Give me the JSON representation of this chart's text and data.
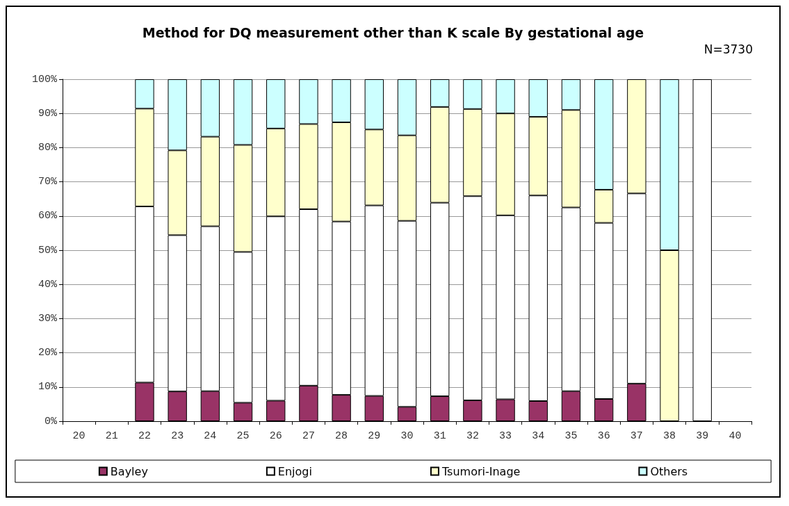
{
  "chart_data": {
    "type": "bar",
    "stacked": true,
    "title": "Method for DQ measurement other than K scale By gestational age",
    "annotations": [
      "N=3730"
    ],
    "categories": [
      "20",
      "21",
      "22",
      "23",
      "24",
      "25",
      "26",
      "27",
      "28",
      "29",
      "30",
      "31",
      "32",
      "33",
      "34",
      "35",
      "36",
      "37",
      "38",
      "39",
      "40"
    ],
    "series": [
      {
        "name": "Bayley",
        "color": "#993366",
        "values": [
          null,
          null,
          11.3,
          8.7,
          8.8,
          5.4,
          6.0,
          10.4,
          7.7,
          7.4,
          4.2,
          7.3,
          6.1,
          6.4,
          5.9,
          8.8,
          6.5,
          11.0,
          0,
          0,
          null
        ]
      },
      {
        "name": "Enjogi",
        "color": "#ffffff",
        "values": [
          null,
          null,
          51.5,
          45.7,
          48.2,
          44.1,
          53.9,
          51.6,
          50.7,
          55.7,
          54.4,
          56.6,
          59.7,
          53.8,
          60.1,
          53.7,
          51.5,
          55.6,
          0,
          100,
          null
        ]
      },
      {
        "name": "Tsumori-Inage",
        "color": "#ffffcc",
        "values": [
          null,
          null,
          28.6,
          24.8,
          26.2,
          31.3,
          25.7,
          24.9,
          29.0,
          22.2,
          25.0,
          28.0,
          25.5,
          29.8,
          23.0,
          28.5,
          9.7,
          33.4,
          50,
          0,
          null
        ]
      },
      {
        "name": "Others",
        "color": "#ccffff",
        "values": [
          null,
          null,
          8.6,
          20.8,
          16.8,
          19.2,
          14.4,
          13.1,
          12.6,
          14.7,
          16.4,
          8.1,
          8.7,
          10.0,
          11.0,
          9.0,
          32.3,
          0,
          50,
          0,
          null
        ]
      }
    ],
    "ylim": [
      0,
      100
    ],
    "yticks": [
      {
        "value": 0,
        "label": "0%"
      },
      {
        "value": 10,
        "label": "10%"
      },
      {
        "value": 20,
        "label": "20%"
      },
      {
        "value": 30,
        "label": "30%"
      },
      {
        "value": 40,
        "label": "40%"
      },
      {
        "value": 50,
        "label": "50%"
      },
      {
        "value": 60,
        "label": "60%"
      },
      {
        "value": 70,
        "label": "70%"
      },
      {
        "value": 80,
        "label": "80%"
      },
      {
        "value": 90,
        "label": "90%"
      },
      {
        "value": 100,
        "label": "100%"
      }
    ],
    "grid": "y",
    "legend": "bottom"
  }
}
